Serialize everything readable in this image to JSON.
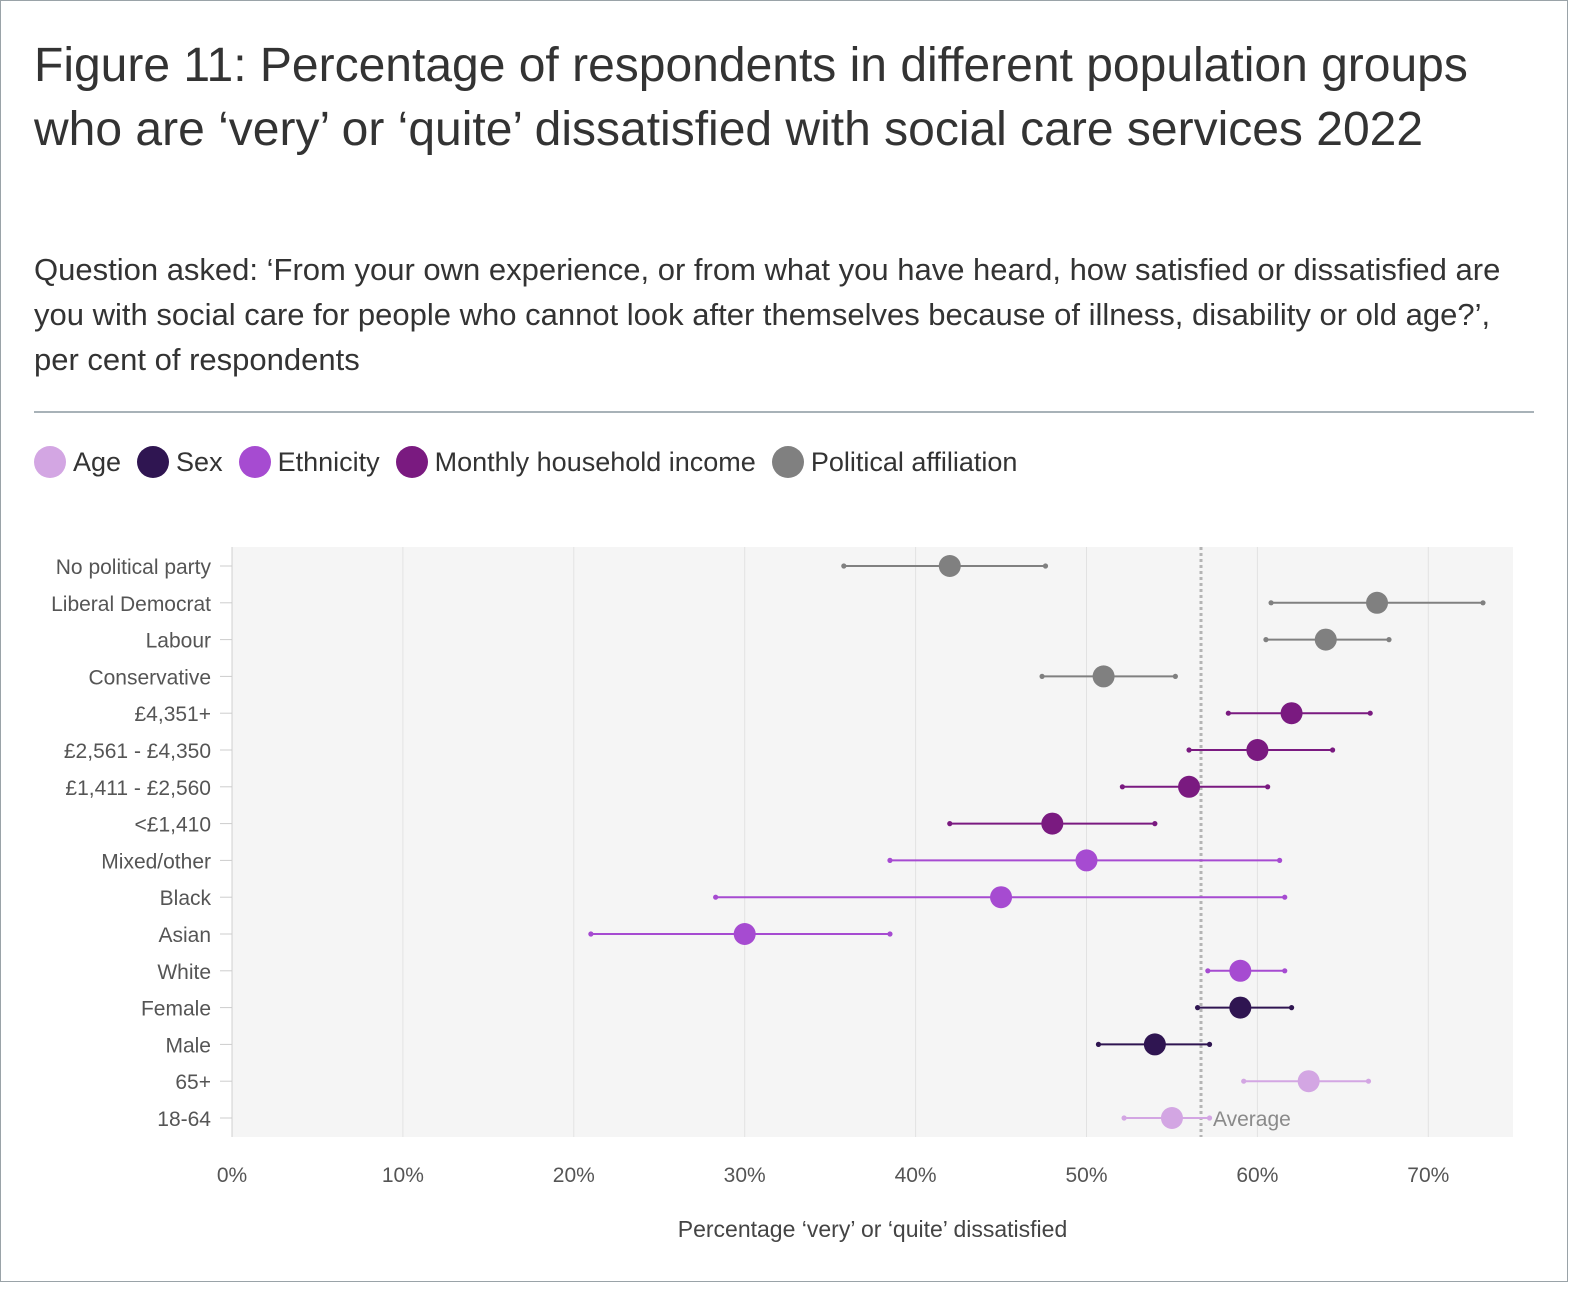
{
  "title": "Figure 11: Percentage of respondents in different population groups who are ‘very’ or ‘quite’ dissatisfied with social care services 2022",
  "subtitle": "Question asked: ‘From your own experience, or from what you have heard, how satisfied or dissatisfied are you with social care for people who cannot look after themselves because of illness, disability or old age?’, per cent of respondents",
  "legend": [
    {
      "label": "Age",
      "color": "#d3a6e3"
    },
    {
      "label": "Sex",
      "color": "#2f1551"
    },
    {
      "label": "Ethnicity",
      "color": "#a64bd1"
    },
    {
      "label": "Monthly household income",
      "color": "#7a1a80"
    },
    {
      "label": "Political affiliation",
      "color": "#808080"
    }
  ],
  "chart_data": {
    "type": "dot-with-error-bars",
    "orientation": "horizontal",
    "xlabel": "Percentage ‘very’ or ‘quite’ dissatisfied",
    "xlim": [
      0,
      75
    ],
    "xticks": [
      0,
      10,
      20,
      30,
      40,
      50,
      60,
      70
    ],
    "xtick_labels": [
      "0%",
      "10%",
      "20%",
      "30%",
      "40%",
      "50%",
      "60%",
      "70%"
    ],
    "grid": true,
    "average": {
      "value": 56.7,
      "label": "Average"
    },
    "series_colors": {
      "Age": "#d3a6e3",
      "Sex": "#2f1551",
      "Ethnicity": "#a64bd1",
      "Monthly household income": "#7a1a80",
      "Political affiliation": "#808080"
    },
    "rows": [
      {
        "label": "No political party",
        "group": "Political affiliation",
        "value": 42,
        "low": 35.8,
        "high": 47.6
      },
      {
        "label": "Liberal Democrat",
        "group": "Political affiliation",
        "value": 67,
        "low": 60.8,
        "high": 73.2
      },
      {
        "label": "Labour",
        "group": "Political affiliation",
        "value": 64,
        "low": 60.5,
        "high": 67.7
      },
      {
        "label": "Conservative",
        "group": "Political affiliation",
        "value": 51,
        "low": 47.4,
        "high": 55.2
      },
      {
        "label": "£4,351+",
        "group": "Monthly household income",
        "value": 62,
        "low": 58.3,
        "high": 66.6
      },
      {
        "label": "£2,561 - £4,350",
        "group": "Monthly household income",
        "value": 60,
        "low": 56.0,
        "high": 64.4
      },
      {
        "label": "£1,411 - £2,560",
        "group": "Monthly household income",
        "value": 56,
        "low": 52.1,
        "high": 60.6
      },
      {
        "label": "<£1,410",
        "group": "Monthly household income",
        "value": 48,
        "low": 42.0,
        "high": 54.0
      },
      {
        "label": "Mixed/other",
        "group": "Ethnicity",
        "value": 50,
        "low": 38.5,
        "high": 61.3
      },
      {
        "label": "Black",
        "group": "Ethnicity",
        "value": 45,
        "low": 28.3,
        "high": 61.6
      },
      {
        "label": "Asian",
        "group": "Ethnicity",
        "value": 30,
        "low": 21.0,
        "high": 38.5
      },
      {
        "label": "White",
        "group": "Ethnicity",
        "value": 59,
        "low": 57.1,
        "high": 61.6
      },
      {
        "label": "Female",
        "group": "Sex",
        "value": 59,
        "low": 56.5,
        "high": 62.0
      },
      {
        "label": "Male",
        "group": "Sex",
        "value": 54,
        "low": 50.7,
        "high": 57.2
      },
      {
        "label": "65+",
        "group": "Age",
        "value": 63,
        "low": 59.2,
        "high": 66.5
      },
      {
        "label": "18-64",
        "group": "Age",
        "value": 55,
        "low": 52.2,
        "high": 57.2
      }
    ]
  }
}
